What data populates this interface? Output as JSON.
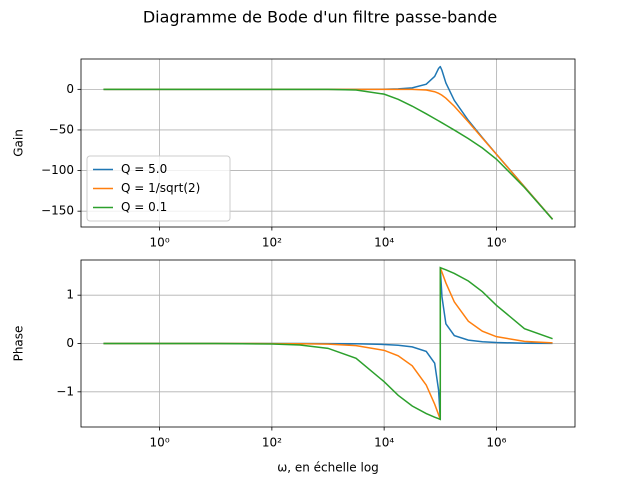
{
  "title": "Diagramme de Bode d'un filtre passe-bande",
  "chart_data": [
    {
      "type": "line",
      "ylabel": "Gain",
      "xscale": "log",
      "grid": true,
      "legend": "lower left",
      "x": [
        0.1,
        1,
        10,
        100,
        316.2,
        1000,
        3162,
        10000,
        17783,
        31623,
        56234,
        79433,
        93325,
        100000,
        100010,
        107152,
        125893,
        177828,
        316228,
        562341,
        1000000,
        3162278,
        10000000
      ],
      "series": [
        {
          "name": "Q = 5.0",
          "color": "#1f77b4",
          "values": [
            0,
            0,
            0,
            0,
            0,
            0,
            0.02,
            0.17,
            0.55,
            1.79,
            6.37,
            15.84,
            25.77,
            27.96,
            27.96,
            23.36,
            7.84,
            -13.63,
            -38.21,
            -59.45,
            -79.83,
            -119.98,
            -160.0
          ]
        },
        {
          "name": "Q = 1/sqrt(2)",
          "color": "#ff7f0e",
          "values": [
            0,
            0,
            0,
            0,
            0,
            0,
            0,
            0,
            -0.01,
            -0.09,
            -0.83,
            -2.91,
            -4.9,
            -6.02,
            -6.02,
            -7.3,
            -10.91,
            -20.83,
            -40.09,
            -60.01,
            -80.0,
            -120.0,
            -160.0
          ]
        },
        {
          "name": "Q = 0.1",
          "color": "#2ca02c",
          "values": [
            0,
            0,
            0,
            0,
            -0.01,
            -0.09,
            -0.81,
            -5.93,
            -12.26,
            -20.68,
            -30.13,
            -36.02,
            -38.8,
            -40,
            -40,
            -41.2,
            -44.02,
            -50.13,
            -60.68,
            -72.26,
            -85.93,
            -120.81,
            -160.08
          ]
        }
      ],
      "xlim": [
        0.0398,
        25118864
      ],
      "xticks": [
        {
          "value": 1,
          "label": "10⁰"
        },
        {
          "value": 100,
          "label": "10²"
        },
        {
          "value": 10000,
          "label": "10⁴"
        },
        {
          "value": 1000000,
          "label": "10⁶"
        }
      ],
      "ylim": [
        -169.48,
        37.36
      ],
      "yticks": [
        {
          "value": -150,
          "label": "−150"
        },
        {
          "value": -100,
          "label": "−100"
        },
        {
          "value": -50,
          "label": "−50"
        },
        0
      ]
    },
    {
      "type": "line",
      "ylabel": "Phase",
      "xlabel": "ω, en échelle log",
      "xscale": "log",
      "grid": true,
      "x": [
        0.1,
        1,
        10,
        100,
        316.2,
        1000,
        3162,
        10000,
        17783,
        31623,
        56234,
        79433,
        93325,
        100000,
        100010,
        107152,
        125893,
        177828,
        316228,
        562341,
        1000000,
        3162278,
        10000000
      ],
      "series": [
        {
          "color": "#1f77b4",
          "values": [
            0,
            0,
            0,
            -0.0002,
            -0.0006,
            -0.002,
            -0.0063,
            -0.0202,
            -0.0367,
            -0.0701,
            -0.163,
            -0.4066,
            -0.966,
            -1.5708,
            1.5698,
            0.9658,
            0.4066,
            0.163,
            0.0701,
            0.0367,
            0.0202,
            0.0063,
            0.002
          ]
        },
        {
          "color": "#ff7f0e",
          "values": [
            0,
            0,
            0,
            -0.0014,
            -0.0045,
            -0.0141,
            -0.0447,
            -0.1419,
            -0.2541,
            -0.4609,
            -0.861,
            -1.254,
            -1.473,
            -1.5708,
            1.5707,
            1.4733,
            1.2537,
            0.8608,
            0.4609,
            0.2541,
            0.1419,
            0.0447,
            0.0141
          ]
        },
        {
          "color": "#2ca02c",
          "values": [
            0,
            0,
            -0.001,
            -0.01,
            -0.0316,
            -0.0997,
            -0.3066,
            -0.7904,
            -1.0721,
            -1.2936,
            -1.4498,
            -1.5244,
            -1.557,
            -1.5708,
            1.5708,
            1.557,
            1.5244,
            1.4498,
            1.2936,
            1.0721,
            0.7904,
            0.3066,
            0.0997
          ]
        }
      ],
      "xlim": [
        0.0398,
        25118864
      ],
      "xticks": [
        {
          "value": 1,
          "label": "10⁰"
        },
        {
          "value": 100,
          "label": "10²"
        },
        {
          "value": 10000,
          "label": "10⁴"
        },
        {
          "value": 1000000,
          "label": "10⁶"
        }
      ],
      "ylim": [
        -1.7279,
        1.7279
      ],
      "yticks": [
        {
          "value": -1,
          "label": "−1"
        },
        0,
        1
      ]
    }
  ]
}
